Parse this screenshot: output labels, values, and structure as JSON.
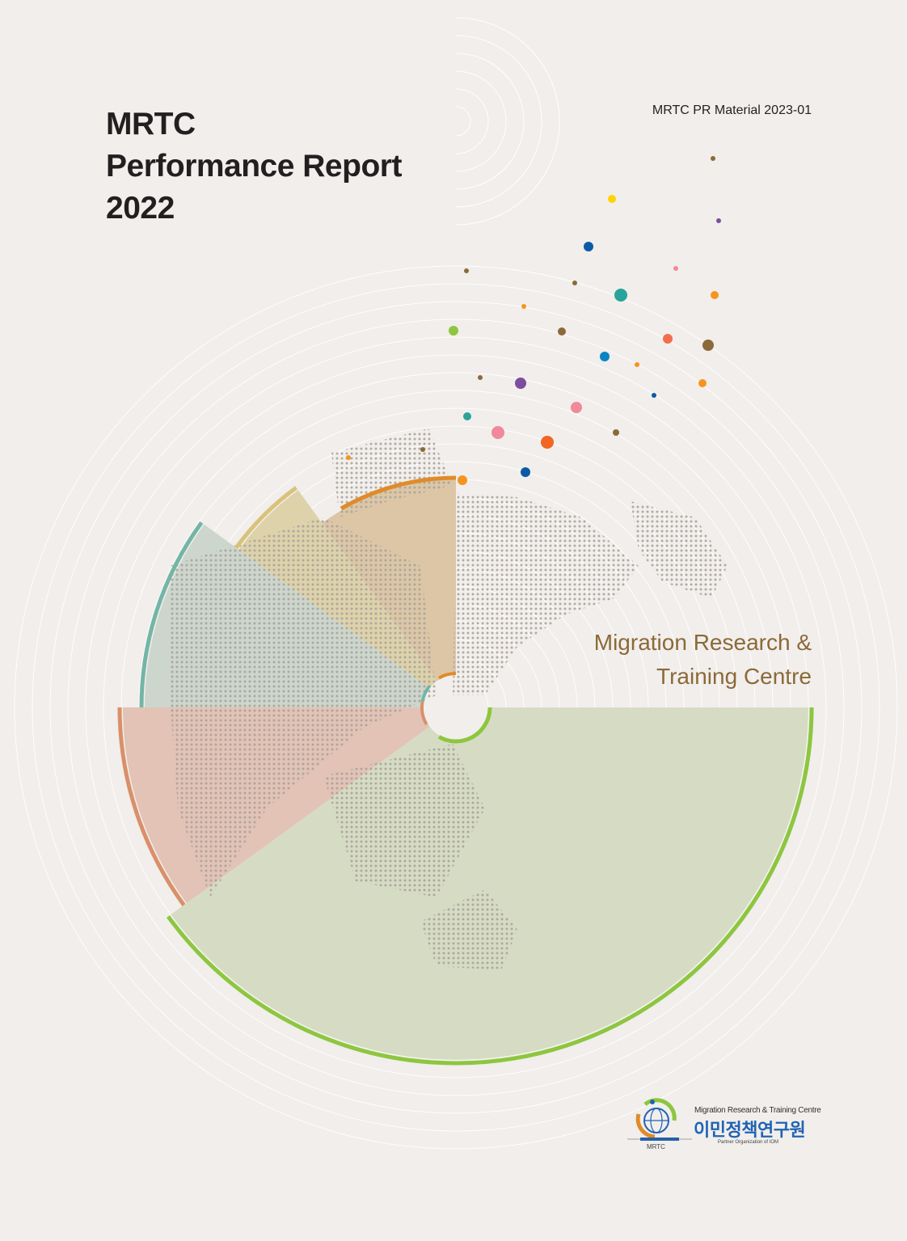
{
  "header": {
    "title_lines": [
      "MRTC",
      "Performance Report",
      "2022"
    ],
    "material_code": "MRTC PR Material 2023-01"
  },
  "centre_name": [
    "Migration Research &",
    "Training Centre"
  ],
  "logo": {
    "abbr": "MRTC",
    "english_name": "Migration Research & Training Centre",
    "korean_name": "이민정책연구원",
    "subtitle": "Partner Organization of IOM"
  },
  "colors": {
    "background": "#f1eeec",
    "green": "#8dc63f",
    "peach": "#d9906a",
    "teal": "#74b5a6",
    "yellow": "#d9c27a",
    "orange": "#e08b2a",
    "brown_text": "#8b6a37"
  }
}
